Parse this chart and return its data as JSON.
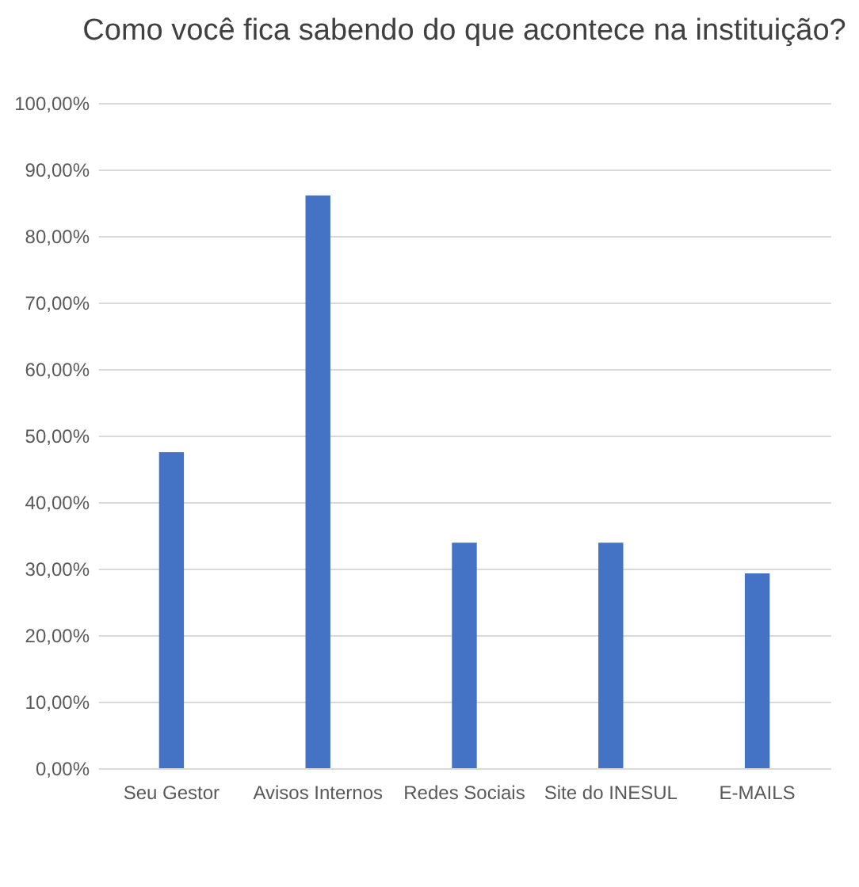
{
  "chart_data": {
    "type": "bar",
    "title": "Como você fica sabendo do que acontece na instituição?",
    "categories": [
      "Seu Gestor",
      "Avisos Internos",
      "Redes Sociais",
      "Site do INESUL",
      "E-MAILS"
    ],
    "values": [
      47.5,
      86.1,
      33.9,
      33.9,
      29.3
    ],
    "color": "#4472c4",
    "ylim": [
      0,
      100
    ],
    "yticks": [
      {
        "value": 0,
        "label": "0,00%"
      },
      {
        "value": 10,
        "label": "10,00%"
      },
      {
        "value": 20,
        "label": "20,00%"
      },
      {
        "value": 30,
        "label": "30,00%"
      },
      {
        "value": 40,
        "label": "40,00%"
      },
      {
        "value": 50,
        "label": "50,00%"
      },
      {
        "value": 60,
        "label": "60,00%"
      },
      {
        "value": 70,
        "label": "70,00%"
      },
      {
        "value": 80,
        "label": "80,00%"
      },
      {
        "value": 90,
        "label": "90,00%"
      },
      {
        "value": 100,
        "label": "100,00%"
      }
    ],
    "grid": "y"
  }
}
